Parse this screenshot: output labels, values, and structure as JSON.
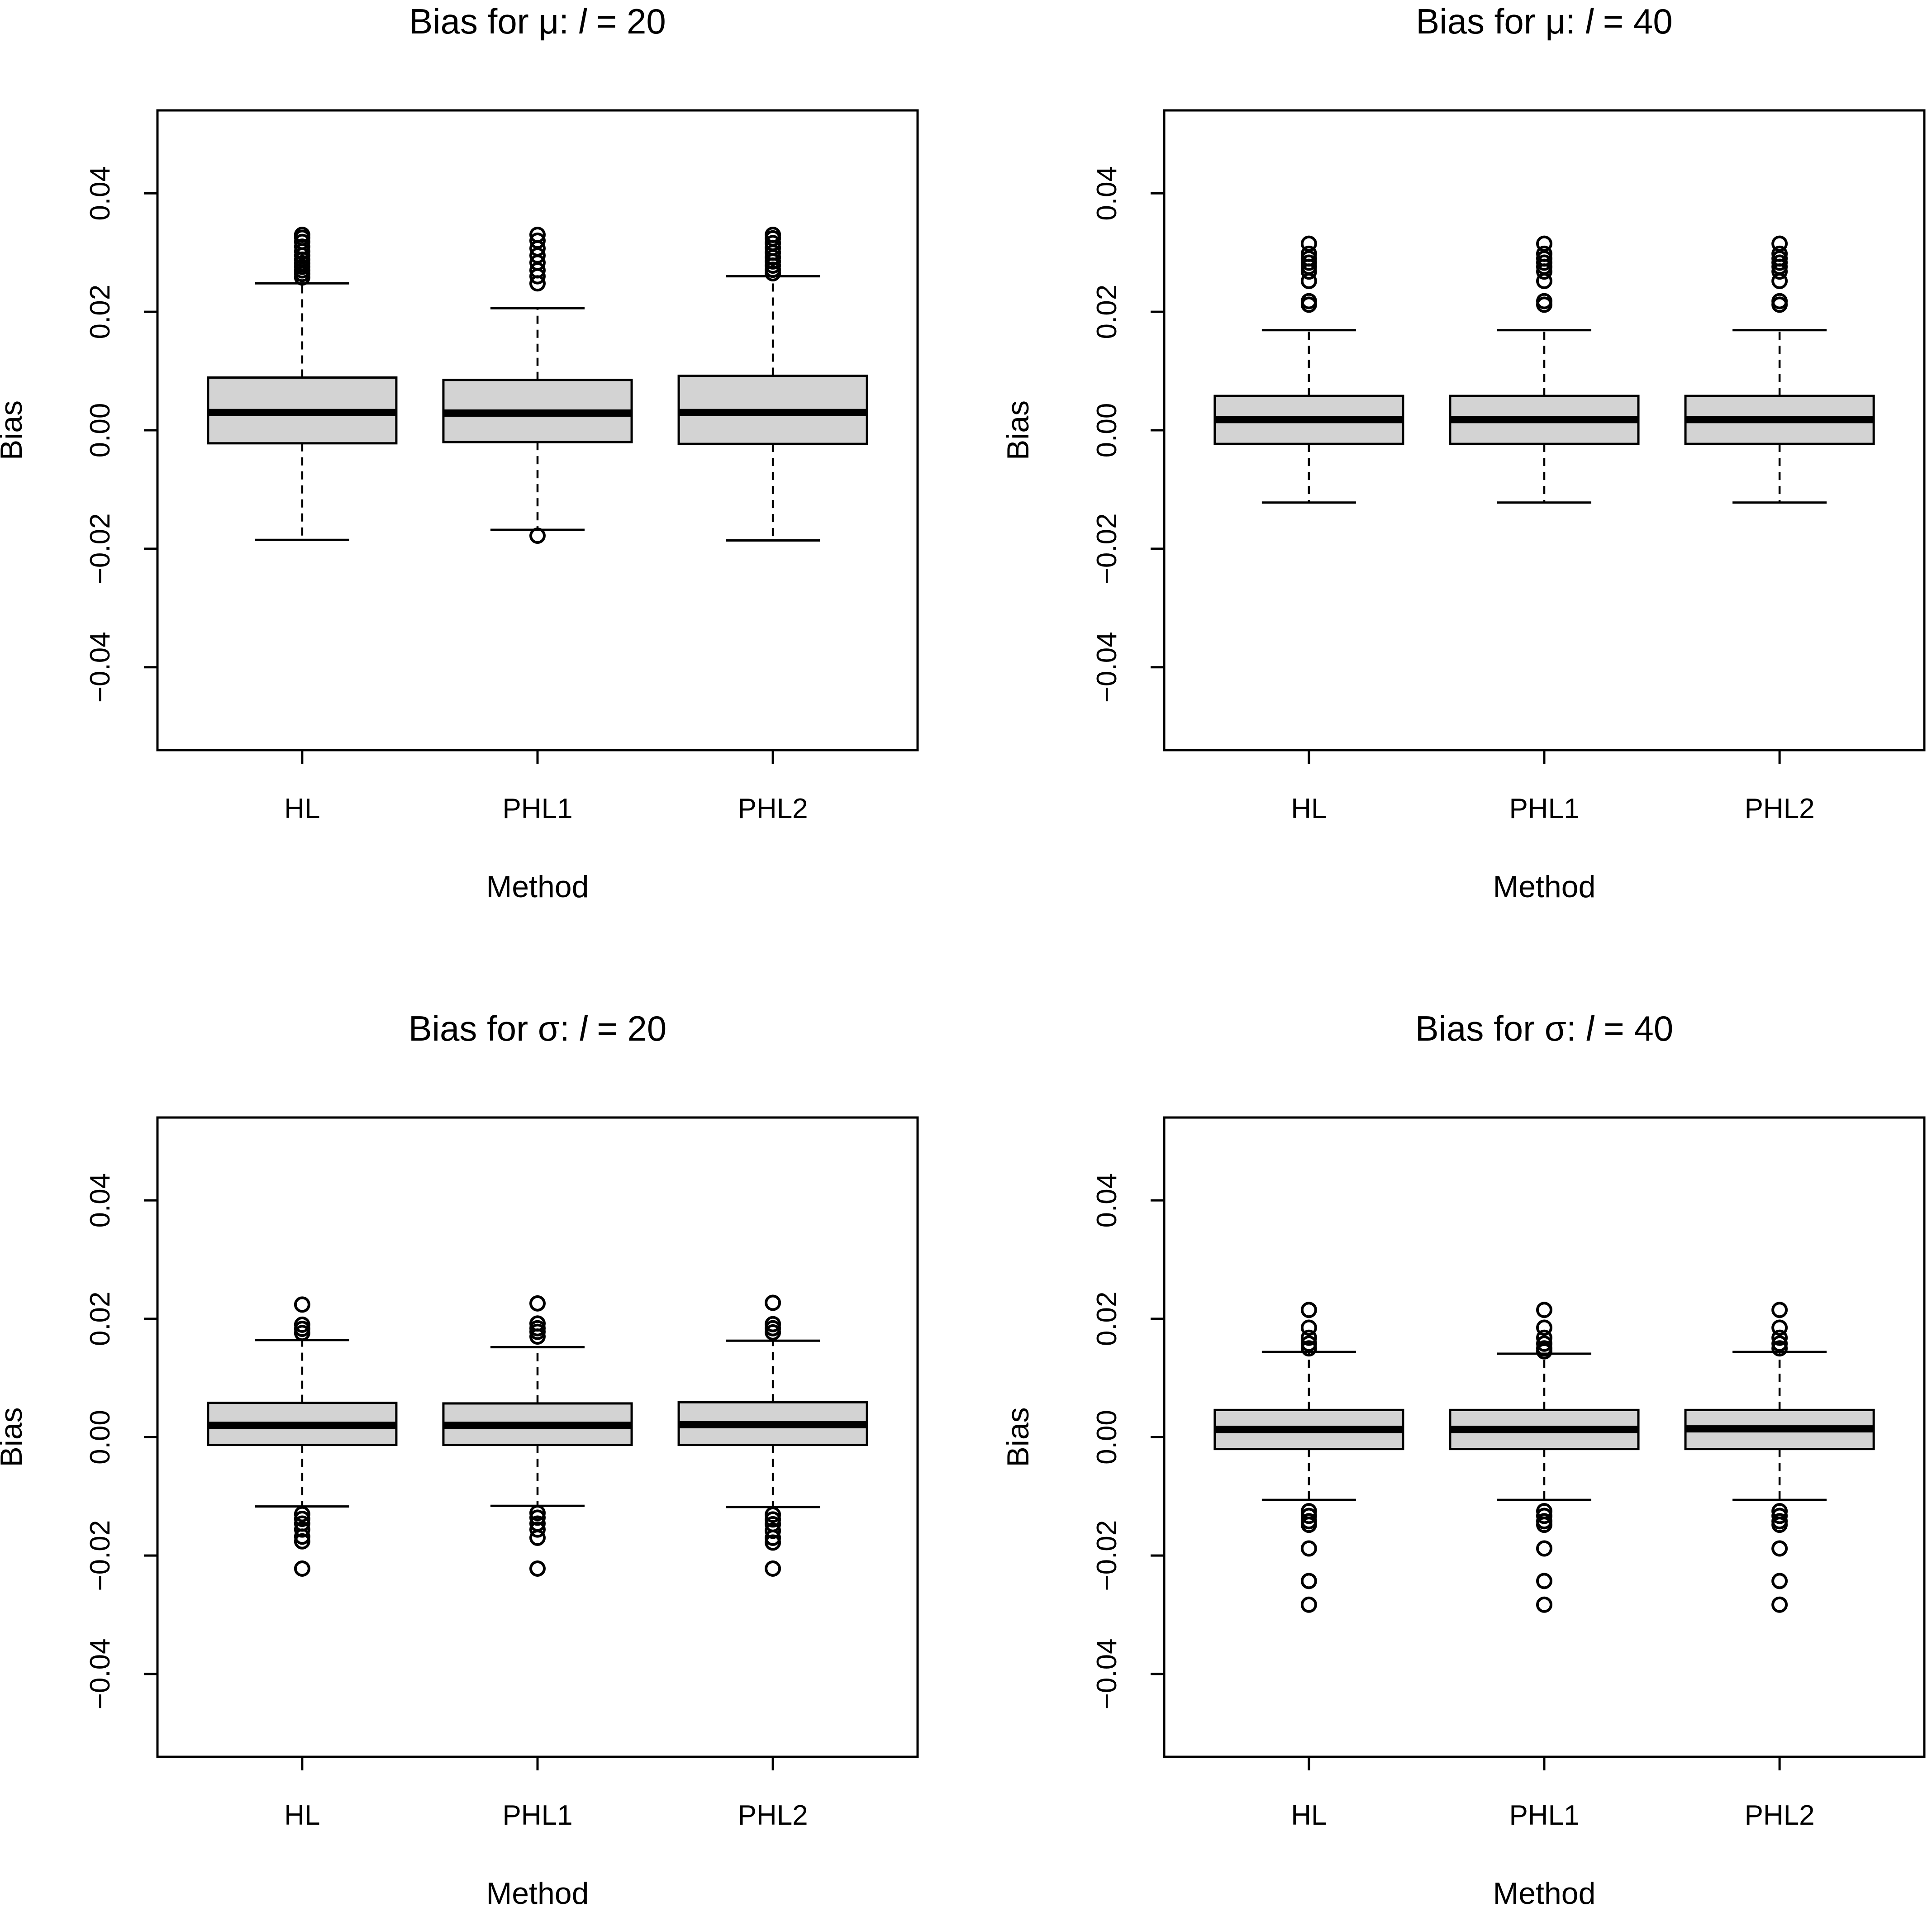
{
  "figure_label": "Boxplots of bias by method",
  "chart_data": [
    {
      "type": "box",
      "title": "Bias for μ: l = 20",
      "title_parts": {
        "prefix": "Bias for ",
        "symbol": "μ",
        "sep": ": ",
        "var": "l",
        "eq": " = ",
        "value": "20"
      },
      "xlabel": "Method",
      "ylabel": "Bias",
      "ylim": [
        -0.054,
        0.054
      ],
      "yticks": [
        -0.04,
        -0.02,
        0.0,
        0.02,
        0.04
      ],
      "ytick_labels": [
        "−0.04",
        "−0.02",
        "0.00",
        "0.02",
        "0.04"
      ],
      "categories": [
        "HL",
        "PHL1",
        "PHL2"
      ],
      "boxes": [
        {
          "name": "HL",
          "lower_whisker": -0.0185,
          "q1": -0.0022,
          "median": 0.003,
          "q3": 0.0089,
          "upper_whisker": 0.0248,
          "outliers": [
            0.033,
            0.0325,
            0.0318,
            0.031,
            0.0302,
            0.0295,
            0.0288,
            0.0282,
            0.0276,
            0.027,
            0.0264,
            0.0258
          ]
        },
        {
          "name": "PHL1",
          "lower_whisker": -0.0168,
          "q1": -0.002,
          "median": 0.0029,
          "q3": 0.0085,
          "upper_whisker": 0.0206,
          "outliers": [
            0.033,
            0.032,
            0.0307,
            0.0295,
            0.0283,
            0.027,
            0.026,
            0.0248,
            -0.0178
          ]
        },
        {
          "name": "PHL2",
          "lower_whisker": -0.0186,
          "q1": -0.0023,
          "median": 0.003,
          "q3": 0.0092,
          "upper_whisker": 0.026,
          "outliers": [
            0.033,
            0.0324,
            0.0316,
            0.0308,
            0.03,
            0.0292,
            0.0285,
            0.0278,
            0.0271,
            0.0265
          ]
        }
      ]
    },
    {
      "type": "box",
      "title": "Bias for μ: l = 40",
      "title_parts": {
        "prefix": "Bias for ",
        "symbol": "μ",
        "sep": ": ",
        "var": "l",
        "eq": " = ",
        "value": "40"
      },
      "xlabel": "Method",
      "ylabel": "Bias",
      "ylim": [
        -0.054,
        0.054
      ],
      "yticks": [
        -0.04,
        -0.02,
        0.0,
        0.02,
        0.04
      ],
      "ytick_labels": [
        "−0.04",
        "−0.02",
        "0.00",
        "0.02",
        "0.04"
      ],
      "categories": [
        "HL",
        "PHL1",
        "PHL2"
      ],
      "boxes": [
        {
          "name": "HL",
          "lower_whisker": -0.0122,
          "q1": -0.0023,
          "median": 0.0018,
          "q3": 0.0058,
          "upper_whisker": 0.0169,
          "outliers": [
            0.0315,
            0.0298,
            0.029,
            0.0283,
            0.0276,
            0.0268,
            0.0252,
            0.0218,
            0.0212
          ]
        },
        {
          "name": "PHL1",
          "lower_whisker": -0.0122,
          "q1": -0.0023,
          "median": 0.0018,
          "q3": 0.0058,
          "upper_whisker": 0.0169,
          "outliers": [
            0.0315,
            0.0298,
            0.029,
            0.0283,
            0.0276,
            0.0268,
            0.0252,
            0.0218,
            0.0212
          ]
        },
        {
          "name": "PHL2",
          "lower_whisker": -0.0122,
          "q1": -0.0023,
          "median": 0.0018,
          "q3": 0.0058,
          "upper_whisker": 0.0169,
          "outliers": [
            0.0315,
            0.0298,
            0.029,
            0.0283,
            0.0276,
            0.0268,
            0.0252,
            0.0218,
            0.0212
          ]
        }
      ]
    },
    {
      "type": "box",
      "title": "Bias for σ: l = 20",
      "title_parts": {
        "prefix": "Bias for ",
        "symbol": "σ",
        "sep": ": ",
        "var": "l",
        "eq": " = ",
        "value": "20"
      },
      "xlabel": "Method",
      "ylabel": "Bias",
      "ylim": [
        -0.054,
        0.054
      ],
      "yticks": [
        -0.04,
        -0.02,
        0.0,
        0.02,
        0.04
      ],
      "ytick_labels": [
        "−0.04",
        "−0.02",
        "0.00",
        "0.02",
        "0.04"
      ],
      "categories": [
        "HL",
        "PHL1",
        "PHL2"
      ],
      "boxes": [
        {
          "name": "HL",
          "lower_whisker": -0.0117,
          "q1": -0.0013,
          "median": 0.002,
          "q3": 0.0058,
          "upper_whisker": 0.0164,
          "outliers": [
            0.0224,
            0.019,
            0.0183,
            0.0176,
            -0.013,
            -0.0138,
            -0.0146,
            -0.0156,
            -0.0168,
            -0.0176,
            -0.0222
          ]
        },
        {
          "name": "PHL1",
          "lower_whisker": -0.0116,
          "q1": -0.0013,
          "median": 0.002,
          "q3": 0.0057,
          "upper_whisker": 0.0152,
          "outliers": [
            0.0226,
            0.0192,
            0.0184,
            0.0178,
            0.017,
            -0.0128,
            -0.0136,
            -0.0146,
            -0.0156,
            -0.017,
            -0.0222
          ]
        },
        {
          "name": "PHL2",
          "lower_whisker": -0.0118,
          "q1": -0.0013,
          "median": 0.0021,
          "q3": 0.0059,
          "upper_whisker": 0.0163,
          "outliers": [
            0.0227,
            0.0191,
            0.0184,
            0.0177,
            -0.0131,
            -0.0139,
            -0.0147,
            -0.0158,
            -0.017,
            -0.0178,
            -0.0222
          ]
        }
      ]
    },
    {
      "type": "box",
      "title": "Bias for σ: l = 40",
      "title_parts": {
        "prefix": "Bias for ",
        "symbol": "σ",
        "sep": ": ",
        "var": "l",
        "eq": " = ",
        "value": "40"
      },
      "xlabel": "Method",
      "ylabel": "Bias",
      "ylim": [
        -0.054,
        0.054
      ],
      "yticks": [
        -0.04,
        -0.02,
        0.0,
        0.02,
        0.04
      ],
      "ytick_labels": [
        "−0.04",
        "−0.02",
        "0.00",
        "0.02",
        "0.04"
      ],
      "categories": [
        "HL",
        "PHL1",
        "PHL2"
      ],
      "boxes": [
        {
          "name": "HL",
          "lower_whisker": -0.0106,
          "q1": -0.002,
          "median": 0.0013,
          "q3": 0.0046,
          "upper_whisker": 0.0144,
          "outliers": [
            0.0215,
            0.0185,
            0.0168,
            0.0158,
            0.015,
            -0.0125,
            -0.0133,
            -0.0142,
            -0.0148,
            -0.0188,
            -0.0243,
            -0.0283
          ]
        },
        {
          "name": "PHL1",
          "lower_whisker": -0.0106,
          "q1": -0.002,
          "median": 0.0013,
          "q3": 0.0046,
          "upper_whisker": 0.0141,
          "outliers": [
            0.0215,
            0.0185,
            0.0168,
            0.0158,
            0.015,
            0.0145,
            -0.0125,
            -0.0133,
            -0.0142,
            -0.0148,
            -0.0188,
            -0.0243,
            -0.0283
          ]
        },
        {
          "name": "PHL2",
          "lower_whisker": -0.0106,
          "q1": -0.002,
          "median": 0.0014,
          "q3": 0.0046,
          "upper_whisker": 0.0144,
          "outliers": [
            0.0215,
            0.0185,
            0.0168,
            0.0158,
            0.015,
            -0.0125,
            -0.0133,
            -0.0142,
            -0.0148,
            -0.0188,
            -0.0243,
            -0.0283
          ]
        }
      ]
    }
  ]
}
